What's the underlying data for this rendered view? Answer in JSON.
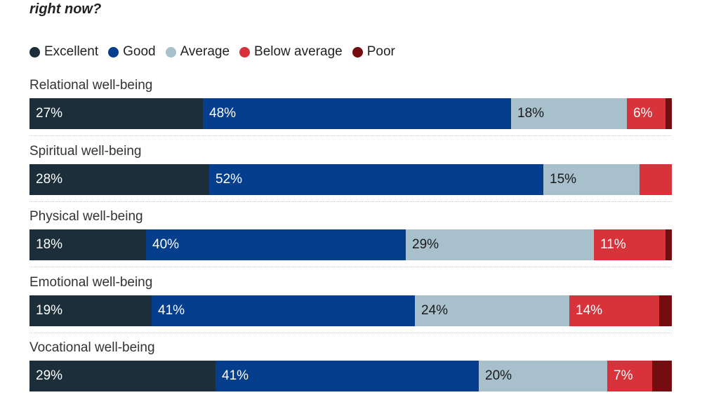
{
  "title": "right now?",
  "legend": [
    {
      "label": "Excellent",
      "color": "#1b2e3a"
    },
    {
      "label": "Good",
      "color": "#043e8c"
    },
    {
      "label": "Average",
      "color": "#a8bfcc"
    },
    {
      "label": "Below average",
      "color": "#d8333a"
    },
    {
      "label": "Poor",
      "color": "#730d10"
    }
  ],
  "chart_data": {
    "type": "bar",
    "orientation": "horizontal",
    "stacked": true,
    "title": "right now?",
    "categories": [
      "Relational well-being",
      "Spiritual well-being",
      "Physical well-being",
      "Emotional well-being",
      "Vocational well-being"
    ],
    "series": [
      {
        "name": "Excellent",
        "color": "#1b2e3a",
        "values": [
          27,
          28,
          18,
          19,
          29
        ],
        "labels": [
          "27%",
          "28%",
          "18%",
          "19%",
          "29%"
        ],
        "label_color": "#ffffff"
      },
      {
        "name": "Good",
        "color": "#043e8c",
        "values": [
          48,
          52,
          40,
          41,
          41
        ],
        "labels": [
          "48%",
          "52%",
          "40%",
          "41%",
          "41%"
        ],
        "label_color": "#ffffff"
      },
      {
        "name": "Average",
        "color": "#a8bfcc",
        "values": [
          18,
          15,
          29,
          24,
          20
        ],
        "labels": [
          "18%",
          "15%",
          "29%",
          "24%",
          "20%"
        ],
        "label_color": "#1a1a1a"
      },
      {
        "name": "Below average",
        "color": "#d8333a",
        "values": [
          6,
          5,
          11,
          14,
          7
        ],
        "labels": [
          "6%",
          "",
          "11%",
          "14%",
          "7%"
        ],
        "label_color": "#ffffff"
      },
      {
        "name": "Poor",
        "color": "#730d10",
        "values": [
          1,
          0,
          1,
          2,
          3
        ],
        "labels": [
          "",
          "",
          "",
          "",
          ""
        ],
        "label_color": "#ffffff"
      }
    ],
    "xlim": [
      0,
      100
    ],
    "grid": false,
    "legend_position": "top-left"
  }
}
